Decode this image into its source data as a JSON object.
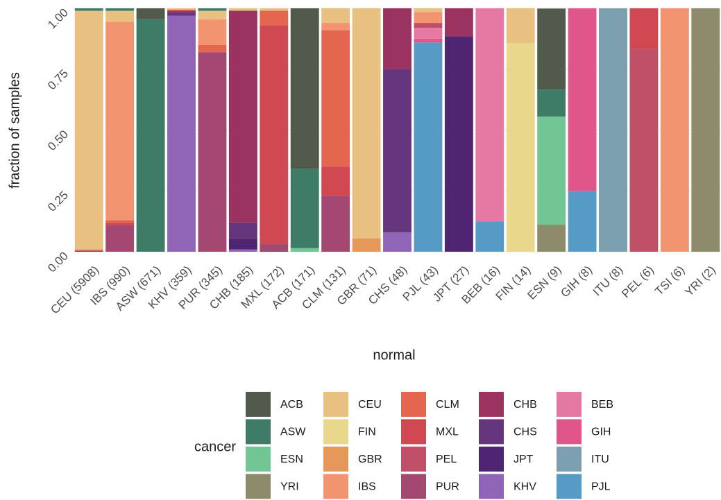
{
  "chart_data": {
    "type": "stacked_bar",
    "x_label": "normal",
    "y_label": "fraction of samples",
    "legend_title": "cancer",
    "categories": [
      "CEU (5908)",
      "IBS (990)",
      "ASW (671)",
      "KHV (359)",
      "PUR (345)",
      "CHB (185)",
      "MXL (172)",
      "ACB (171)",
      "CLM (131)",
      "GBR (71)",
      "CHS (48)",
      "PJL (43)",
      "JPT (27)",
      "BEB (16)",
      "FIN (14)",
      "ESN (9)",
      "GIH (8)",
      "ITU (8)",
      "PEL (6)",
      "TSI (6)",
      "YRI (2)"
    ],
    "ylim": [
      0,
      1
    ],
    "yticks": [
      {
        "value": 0,
        "label": "0.00"
      },
      0.25,
      {
        "value": 0.5,
        "label": "0.50"
      },
      0.75,
      {
        "value": 1,
        "label": "1.00"
      }
    ],
    "grid": true,
    "series": [
      {
        "name": "ACB",
        "color": "#525a4c",
        "values": [
          0,
          0,
          0.045,
          0,
          0,
          0,
          0,
          0.66,
          0,
          0,
          0,
          0,
          0,
          0,
          0,
          0.333,
          0,
          0,
          0,
          0,
          0
        ]
      },
      {
        "name": "ASW",
        "color": "#3e7c68",
        "values": [
          0.01,
          0.01,
          0.955,
          0,
          0.01,
          0,
          0,
          0.325,
          0,
          0,
          0,
          0,
          0,
          0,
          0,
          0.111,
          0,
          0,
          0,
          0,
          0
        ]
      },
      {
        "name": "ESN",
        "color": "#72c693",
        "values": [
          0,
          0,
          0,
          0,
          0,
          0,
          0,
          0.015,
          0,
          0,
          0,
          0,
          0,
          0,
          0,
          0.444,
          0,
          0,
          0,
          0,
          0
        ]
      },
      {
        "name": "YRI",
        "color": "#8e8b6b",
        "values": [
          0,
          0,
          0,
          0,
          0,
          0,
          0,
          0,
          0,
          0,
          0,
          0,
          0,
          0,
          0,
          0.111,
          0,
          0,
          0,
          0,
          1
        ]
      },
      {
        "name": "CEU",
        "color": "#e8c07f",
        "values": [
          0.979,
          0.045,
          0,
          0.005,
          0.035,
          0.01,
          0.01,
          0,
          0.06,
          0.945,
          0,
          0.015,
          0,
          0,
          0.143,
          0,
          0,
          0,
          0,
          0,
          0
        ]
      },
      {
        "name": "FIN",
        "color": "#e9d88b",
        "values": [
          0,
          0,
          0,
          0,
          0,
          0,
          0,
          0,
          0,
          0,
          0,
          0,
          0,
          0,
          0.857,
          0,
          0,
          0,
          0,
          0,
          0
        ]
      },
      {
        "name": "GBR",
        "color": "#e5985a",
        "values": [
          0,
          0,
          0,
          0,
          0,
          0,
          0,
          0,
          0,
          0.055,
          0,
          0,
          0,
          0,
          0,
          0,
          0,
          0,
          0,
          0,
          0
        ]
      },
      {
        "name": "IBS",
        "color": "#f39470",
        "values": [
          0.006,
          0.815,
          0,
          0,
          0.105,
          0,
          0,
          0,
          0.03,
          0,
          0,
          0.045,
          0,
          0,
          0,
          0,
          0,
          0,
          0,
          1,
          0
        ]
      },
      {
        "name": "CLM",
        "color": "#e5664f",
        "values": [
          0,
          0.01,
          0,
          0.005,
          0.03,
          0,
          0.06,
          0,
          0.56,
          0,
          0,
          0,
          0,
          0,
          0,
          0,
          0,
          0,
          0,
          0,
          0
        ]
      },
      {
        "name": "MXL",
        "color": "#cf4852",
        "values": [
          0,
          0.01,
          0,
          0,
          0,
          0,
          0.9,
          0,
          0.12,
          0,
          0,
          0,
          0,
          0,
          0,
          0,
          0,
          0,
          0.167,
          0,
          0
        ]
      },
      {
        "name": "PEL",
        "color": "#c04f68",
        "values": [
          0,
          0,
          0,
          0,
          0,
          0,
          0,
          0,
          0,
          0,
          0,
          0.02,
          0,
          0,
          0,
          0,
          0,
          0,
          0.833,
          0,
          0
        ]
      },
      {
        "name": "PUR",
        "color": "#a34870",
        "values": [
          0,
          0.11,
          0,
          0,
          0.82,
          0,
          0.025,
          0,
          0.23,
          0,
          0,
          0,
          0,
          0,
          0,
          0,
          0,
          0,
          0,
          0,
          0
        ]
      },
      {
        "name": "CHB",
        "color": "#9a3360",
        "values": [
          0.005,
          0,
          0,
          0.005,
          0,
          0.87,
          0.005,
          0,
          0,
          0,
          0.25,
          0,
          0.115,
          0,
          0,
          0,
          0,
          0,
          0,
          0,
          0
        ]
      },
      {
        "name": "CHS",
        "color": "#66367c",
        "values": [
          0,
          0,
          0,
          0.015,
          0,
          0.065,
          0,
          0,
          0,
          0,
          0.67,
          0,
          0,
          0,
          0,
          0,
          0,
          0,
          0,
          0,
          0
        ]
      },
      {
        "name": "JPT",
        "color": "#4f2572",
        "values": [
          0,
          0,
          0,
          0,
          0,
          0.045,
          0,
          0,
          0,
          0,
          0,
          0,
          0.885,
          0,
          0,
          0,
          0,
          0,
          0,
          0,
          0
        ]
      },
      {
        "name": "KHV",
        "color": "#9065b8",
        "values": [
          0,
          0,
          0,
          0.97,
          0,
          0.01,
          0,
          0,
          0,
          0,
          0.08,
          0,
          0,
          0,
          0,
          0,
          0,
          0,
          0,
          0,
          0
        ]
      },
      {
        "name": "BEB",
        "color": "#e579a3",
        "values": [
          0,
          0,
          0,
          0,
          0,
          0,
          0,
          0,
          0,
          0,
          0,
          0.045,
          0,
          0.875,
          0,
          0,
          0,
          0,
          0,
          0,
          0
        ]
      },
      {
        "name": "GIH",
        "color": "#df568a",
        "values": [
          0,
          0,
          0,
          0,
          0,
          0,
          0,
          0,
          0,
          0,
          0,
          0.015,
          0,
          0,
          0,
          0,
          0.75,
          0,
          0,
          0,
          0
        ]
      },
      {
        "name": "ITU",
        "color": "#7c9fb0",
        "values": [
          0,
          0,
          0,
          0,
          0,
          0,
          0,
          0,
          0,
          0,
          0,
          0,
          0,
          0,
          0,
          0,
          0,
          1,
          0,
          0,
          0
        ]
      },
      {
        "name": "PJL",
        "color": "#569ac6",
        "values": [
          0,
          0,
          0,
          0,
          0,
          0,
          0,
          0,
          0,
          0,
          0,
          0.86,
          0,
          0.125,
          0,
          0,
          0.25,
          0,
          0,
          0,
          0
        ]
      }
    ]
  }
}
